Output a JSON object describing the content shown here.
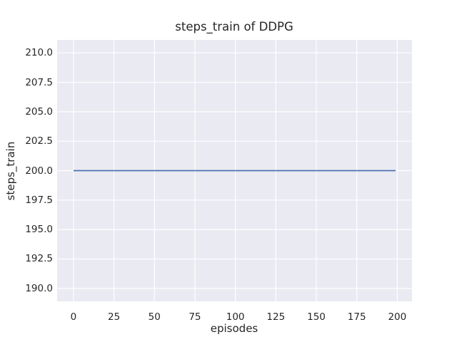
{
  "figure": {
    "background": "#ffffff"
  },
  "chart_data": {
    "type": "line",
    "title": "steps_train of DDPG",
    "xlabel": "episodes",
    "ylabel": "steps_train",
    "xlim": [
      -10.1,
      209.1
    ],
    "ylim": [
      188.9,
      211.1
    ],
    "xticks": {
      "values": [
        0,
        25,
        50,
        75,
        100,
        125,
        150,
        175,
        200
      ],
      "labels": [
        "0",
        "25",
        "50",
        "75",
        "100",
        "125",
        "150",
        "175",
        "200"
      ]
    },
    "yticks": {
      "values": [
        190.0,
        192.5,
        195.0,
        197.5,
        200.0,
        202.5,
        205.0,
        207.5,
        210.0
      ],
      "labels": [
        "190.0",
        "192.5",
        "195.0",
        "197.5",
        "200.0",
        "202.5",
        "205.0",
        "207.5",
        "210.0"
      ]
    },
    "grid": true,
    "legend": false,
    "plot_background": "#eaeaf2",
    "gridline_color": "#ffffff",
    "text_color": "#262626",
    "series": [
      {
        "name": "steps_train",
        "color": "#4c72b0",
        "line_width": 1.8,
        "x": [
          0,
          199
        ],
        "y": [
          200,
          200
        ]
      }
    ]
  }
}
